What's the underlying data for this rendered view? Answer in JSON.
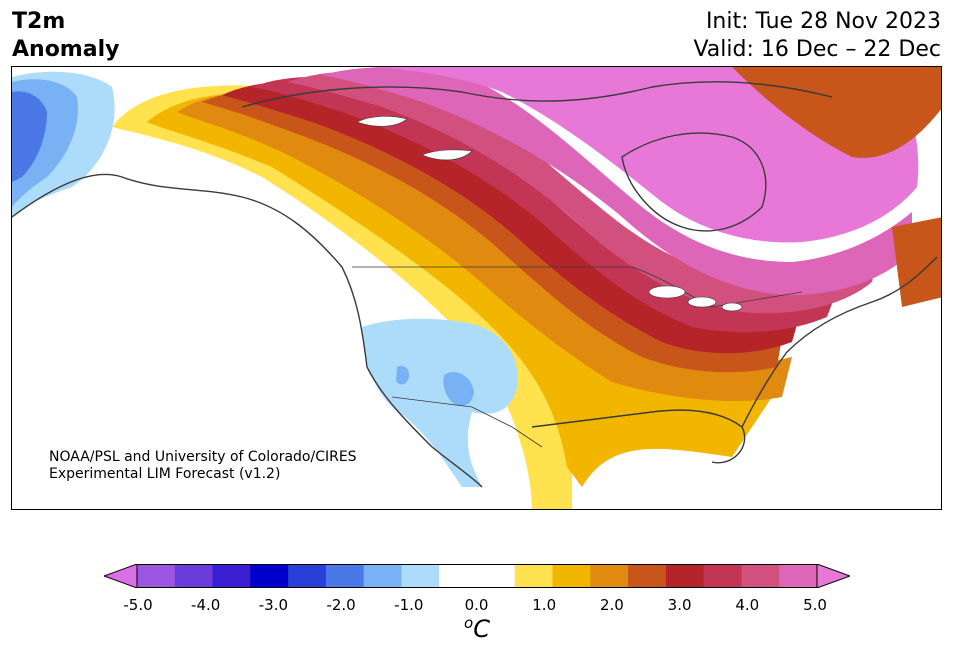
{
  "header": {
    "title_line1": "T2m",
    "title_line2": "Anomaly",
    "init": "Init: Tue 28 Nov 2023",
    "valid": "Valid: 16 Dec – 22 Dec"
  },
  "map": {
    "credit_line1": "NOAA/PSL and University of Colorado/CIRES",
    "credit_line2": "Experimental LIM Forecast (v1.2)"
  },
  "colorbar": {
    "unit_sup": "o",
    "unit_main": "C",
    "ticks": [
      "-5.0",
      "-4.0",
      "-3.0",
      "-2.0",
      "-1.0",
      "0.0",
      "1.0",
      "2.0",
      "3.0",
      "4.0",
      "5.0"
    ],
    "colors": [
      "#d970e6",
      "#9d56e0",
      "#6a3cdc",
      "#3a20d2",
      "#0000cc",
      "#2a3fd8",
      "#4a78e6",
      "#78b2f5",
      "#acdcfa",
      "#ffffff",
      "#ffffff",
      "#ffe24d",
      "#f2b500",
      "#e08a10",
      "#c8561a",
      "#b52428",
      "#c33555",
      "#d2507e",
      "#de66b8",
      "#e878d8"
    ]
  }
}
